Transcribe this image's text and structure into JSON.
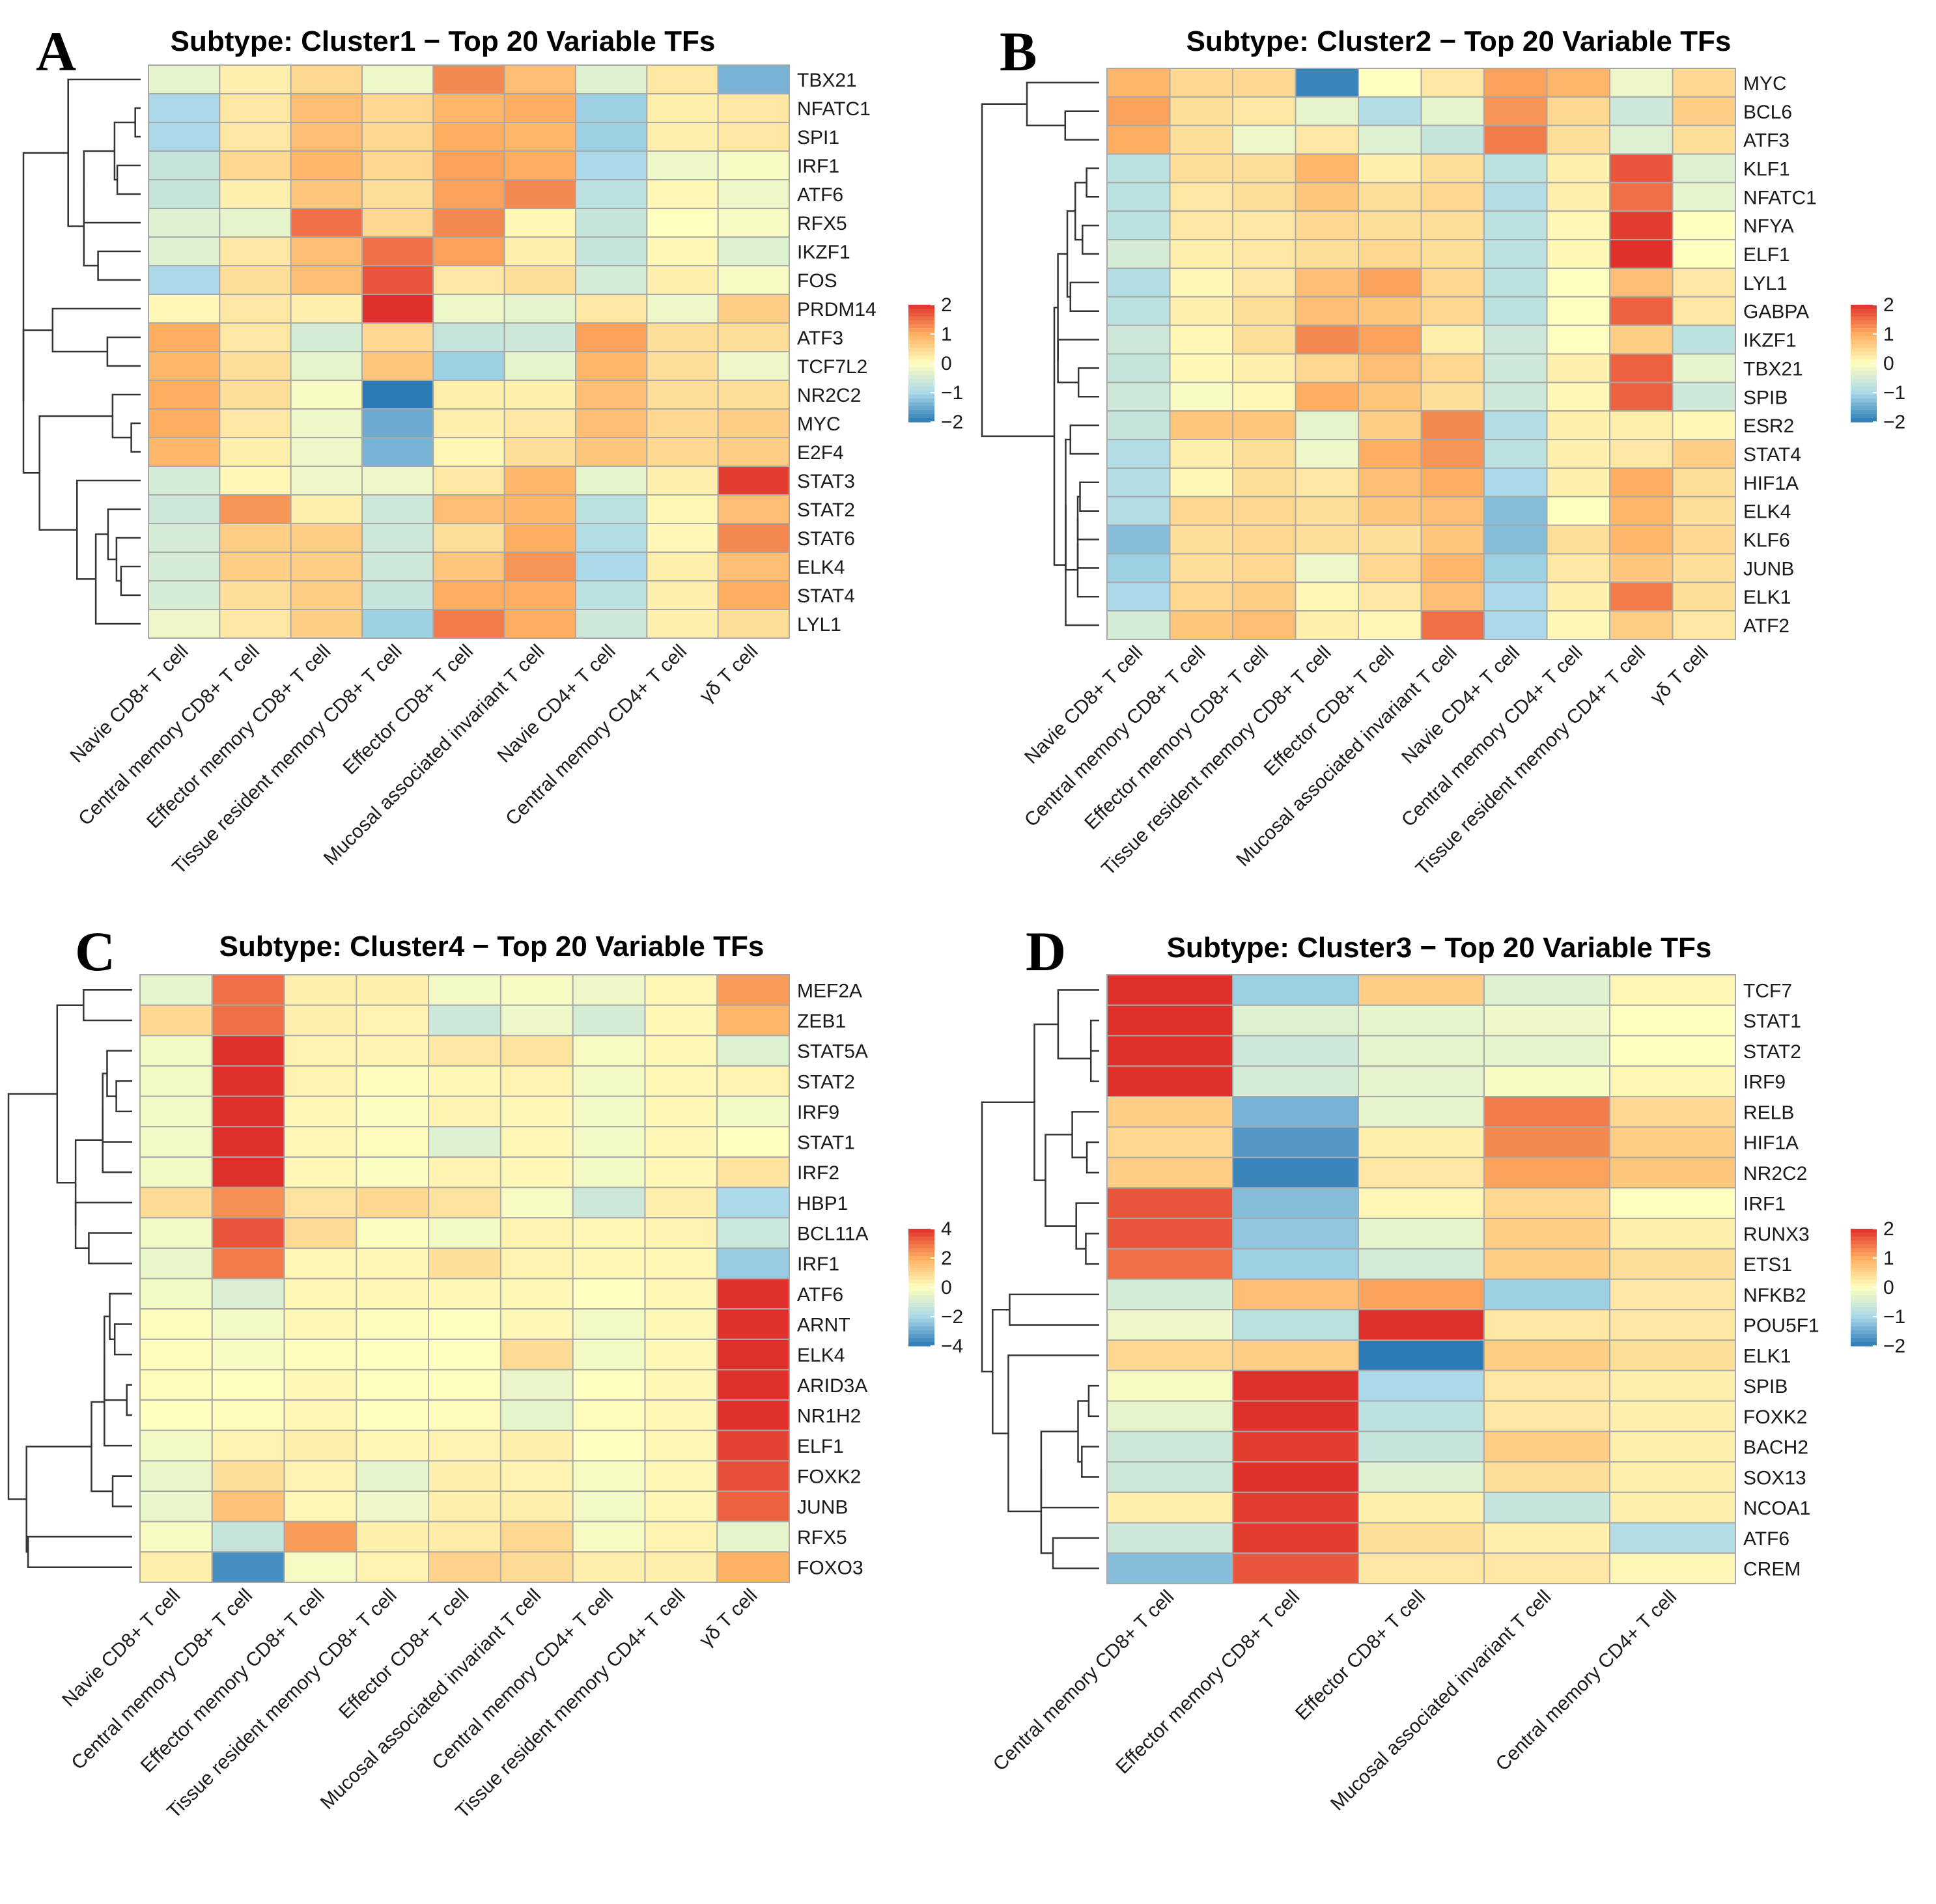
{
  "figure": {
    "description_free": true,
    "colorscale": {
      "low": "#2c7bb6",
      "mid": "#ffffbf",
      "high": "#e0302b",
      "midcolors": [
        "#2c7bb6",
        "#abd9e9",
        "#ffffbf",
        "#fdae61",
        "#e0302b"
      ]
    }
  },
  "chart_data": [
    {
      "panel": "A",
      "type": "heatmap",
      "title": "Subtype: Cluster1 − Top 20 Variable TFs",
      "columns": [
        "Navie CD8+ T cell",
        "Central memory CD8+ T cell",
        "Effector memory CD8+ T cell",
        "Tissue resident memory CD8+ T cell",
        "Effector CD8+ T cell",
        "Mucosal associated invariant T cell",
        "Navie CD4+ T cell",
        "Central memory CD4+ T cell",
        "γδ T cell"
      ],
      "rows": [
        "TBX21",
        "NFATC1",
        "SPI1",
        "IRF1",
        "ATF6",
        "RFX5",
        "IKZF1",
        "FOS",
        "PRDM14",
        "ATF3",
        "TCF7L2",
        "NR2C2",
        "MYC",
        "E2F4",
        "STAT3",
        "STAT2",
        "STAT6",
        "ELK4",
        "STAT4",
        "LYL1"
      ],
      "values": [
        [
          -0.3,
          0.2,
          0.5,
          -0.2,
          1.3,
          0.8,
          -0.4,
          0.3,
          -1.4
        ],
        [
          -1.0,
          0.3,
          0.8,
          0.5,
          0.9,
          1.0,
          -1.1,
          0.2,
          0.3
        ],
        [
          -1.0,
          0.3,
          0.8,
          0.5,
          1.0,
          0.9,
          -1.1,
          0.2,
          0.3
        ],
        [
          -0.7,
          0.5,
          0.9,
          0.5,
          1.1,
          1.0,
          -1.0,
          -0.2,
          -0.1
        ],
        [
          -0.7,
          0.2,
          0.7,
          0.4,
          1.1,
          1.3,
          -0.8,
          0.1,
          -0.2
        ],
        [
          -0.4,
          -0.3,
          1.5,
          0.5,
          1.3,
          0.1,
          -0.7,
          0.0,
          -0.1
        ],
        [
          -0.4,
          0.3,
          0.8,
          1.5,
          1.1,
          0.2,
          -0.7,
          0.1,
          -0.4
        ],
        [
          -1.0,
          0.4,
          0.8,
          1.7,
          0.3,
          0.4,
          -0.5,
          0.2,
          -0.1
        ],
        [
          0.1,
          0.3,
          0.2,
          2.2,
          -0.2,
          -0.3,
          0.3,
          -0.2,
          0.6
        ],
        [
          1.0,
          0.3,
          -0.5,
          0.5,
          -0.7,
          -0.6,
          1.1,
          0.4,
          0.4
        ],
        [
          0.9,
          0.4,
          -0.3,
          0.7,
          -1.1,
          -0.3,
          0.9,
          0.4,
          -0.2
        ],
        [
          1.0,
          0.4,
          -0.1,
          -2.1,
          0.2,
          0.2,
          0.8,
          0.4,
          0.4
        ],
        [
          1.0,
          0.3,
          -0.2,
          -1.5,
          0.2,
          0.3,
          0.8,
          0.5,
          0.6
        ],
        [
          0.9,
          0.2,
          -0.2,
          -1.4,
          0.1,
          0.4,
          0.7,
          0.5,
          0.6
        ],
        [
          -0.5,
          0.1,
          -0.2,
          -0.2,
          0.3,
          0.9,
          -0.3,
          0.2,
          1.9
        ],
        [
          -0.6,
          1.2,
          0.2,
          -0.6,
          0.8,
          0.9,
          -0.8,
          0.1,
          0.8
        ],
        [
          -0.5,
          0.6,
          0.6,
          -0.6,
          0.4,
          1.0,
          -0.9,
          0.1,
          1.3
        ],
        [
          -0.5,
          0.6,
          0.6,
          -0.6,
          0.7,
          1.2,
          -1.0,
          0.2,
          0.8
        ],
        [
          -0.5,
          0.4,
          0.6,
          -0.7,
          1.0,
          1.0,
          -0.8,
          0.2,
          1.0
        ],
        [
          -0.2,
          0.3,
          0.6,
          -1.1,
          1.4,
          1.0,
          -0.6,
          0.2,
          0.4
        ]
      ],
      "legend": {
        "ticks": [
          2,
          1,
          0,
          -1,
          -2
        ],
        "tick_labels": [
          "2",
          "1",
          "0",
          "−1",
          "−2"
        ],
        "range": [
          -2,
          2
        ]
      },
      "dendrogram": {
        "type": "row",
        "leaves": 20
      }
    },
    {
      "panel": "B",
      "type": "heatmap",
      "title": "Subtype: Cluster2 − Top 20 Variable TFs",
      "columns": [
        "Navie CD8+ T cell",
        "Central memory CD8+ T cell",
        "Effector memory CD8+ T cell",
        "Tissue resident memory CD8+ T cell",
        "Effector CD8+ T cell",
        "Mucosal associated invariant T cell",
        "Navie CD4+ T cell",
        "Central memory CD4+ T cell",
        "Tissue resident memory CD4+ T cell",
        "γδ T cell"
      ],
      "rows": [
        "MYC",
        "BCL6",
        "ATF3",
        "KLF1",
        "NFATC1",
        "NFYA",
        "ELF1",
        "LYL1",
        "GABPA",
        "IKZF1",
        "TBX21",
        "SPIB",
        "ESR2",
        "STAT4",
        "HIF1A",
        "ELK4",
        "KLF6",
        "JUNB",
        "ELK1",
        "ATF2"
      ],
      "values": [
        [
          0.9,
          0.5,
          0.5,
          -1.9,
          0.0,
          0.3,
          1.1,
          0.9,
          -0.2,
          0.5
        ],
        [
          1.1,
          0.4,
          0.3,
          -0.3,
          -0.9,
          -0.3,
          1.2,
          0.5,
          -0.6,
          0.6
        ],
        [
          1.0,
          0.4,
          -0.2,
          0.3,
          -0.4,
          -0.7,
          1.4,
          0.4,
          -0.4,
          0.4
        ],
        [
          -0.8,
          0.4,
          0.4,
          0.9,
          0.2,
          0.4,
          -0.8,
          0.2,
          1.7,
          -0.4
        ],
        [
          -0.8,
          0.3,
          0.4,
          0.7,
          0.4,
          0.5,
          -0.9,
          0.2,
          1.5,
          -0.3
        ],
        [
          -0.8,
          0.3,
          0.3,
          0.5,
          0.4,
          0.4,
          -0.8,
          0.1,
          1.9,
          0.0
        ],
        [
          -0.5,
          0.2,
          0.3,
          0.4,
          0.5,
          0.4,
          -0.8,
          0.1,
          2.3,
          0.0
        ],
        [
          -0.9,
          0.1,
          0.3,
          0.8,
          1.1,
          0.5,
          -0.8,
          0.0,
          0.8,
          0.3
        ],
        [
          -0.8,
          0.2,
          0.4,
          0.8,
          0.7,
          0.5,
          -0.8,
          0.0,
          1.6,
          0.3
        ],
        [
          -0.6,
          0.1,
          0.4,
          1.3,
          1.1,
          0.2,
          -0.6,
          0.0,
          0.6,
          -0.8
        ],
        [
          -0.7,
          0.1,
          0.2,
          0.5,
          0.8,
          0.5,
          -0.6,
          0.2,
          1.6,
          -0.3
        ],
        [
          -0.6,
          -0.1,
          0.1,
          1.0,
          0.7,
          0.4,
          -0.6,
          0.1,
          1.6,
          -0.6
        ],
        [
          -0.7,
          0.7,
          0.7,
          -0.3,
          0.6,
          1.3,
          -0.9,
          0.2,
          0.2,
          0.1
        ],
        [
          -0.9,
          0.2,
          0.4,
          -0.2,
          1.0,
          1.2,
          -0.8,
          0.2,
          0.3,
          0.6
        ],
        [
          -0.9,
          0.1,
          0.4,
          0.3,
          0.8,
          1.0,
          -1.0,
          0.2,
          1.0,
          0.4
        ],
        [
          -0.9,
          0.5,
          0.5,
          0.4,
          0.7,
          0.8,
          -1.3,
          0.0,
          0.9,
          0.4
        ],
        [
          -1.3,
          0.4,
          0.5,
          0.4,
          0.4,
          0.7,
          -1.3,
          0.4,
          0.9,
          0.5
        ],
        [
          -1.1,
          0.4,
          0.5,
          -0.2,
          0.5,
          0.9,
          -1.1,
          0.3,
          0.7,
          0.4
        ],
        [
          -1.0,
          0.5,
          0.6,
          0.1,
          0.3,
          0.8,
          -1.0,
          0.2,
          1.4,
          0.4
        ],
        [
          -0.5,
          0.7,
          0.8,
          0.2,
          0.1,
          1.5,
          -1.0,
          0.1,
          0.6,
          0.3
        ]
      ],
      "legend": {
        "ticks": [
          2,
          1,
          0,
          -1,
          -2
        ],
        "tick_labels": [
          "2",
          "1",
          "0",
          "−1",
          "−2"
        ],
        "range": [
          -2,
          2
        ]
      },
      "dendrogram": {
        "type": "row",
        "leaves": 20
      }
    },
    {
      "panel": "C",
      "type": "heatmap",
      "title": "Subtype: Cluster4 − Top 20 Variable TFs",
      "columns": [
        "Navie CD8+ T cell",
        "Central memory CD8+ T cell",
        "Effector memory CD8+ T cell",
        "Tissue resident memory CD8+ T cell",
        "Effector CD8+ T cell",
        "Mucosal associated invariant T cell",
        "Central memory CD4+ T cell",
        "Tissue resident memory CD4+ T cell",
        "γδ T cell"
      ],
      "rows": [
        "MEF2A",
        "ZEB1",
        "STAT5A",
        "STAT2",
        "IRF9",
        "STAT1",
        "IRF2",
        "HBP1",
        "BCL11A",
        "IRF1",
        "ATF6",
        "ARNT",
        "ELK4",
        "ARID3A",
        "NR1H2",
        "ELF1",
        "FOXK2",
        "JUNB",
        "RFX5",
        "FOXO3"
      ],
      "values": [
        [
          -0.6,
          3.0,
          0.4,
          0.4,
          -0.3,
          -0.2,
          -0.4,
          0.2,
          2.3
        ],
        [
          1.0,
          3.0,
          0.4,
          0.3,
          -1.2,
          -0.4,
          -1.0,
          0.2,
          1.8
        ],
        [
          -0.3,
          4.0,
          0.3,
          0.3,
          0.6,
          0.7,
          -0.2,
          0.2,
          -0.8
        ],
        [
          -0.3,
          4.0,
          0.3,
          0.1,
          0.2,
          0.3,
          -0.3,
          0.2,
          0.3
        ],
        [
          -0.3,
          4.0,
          0.2,
          -0.1,
          0.3,
          0.2,
          -0.3,
          0.2,
          -0.3
        ],
        [
          -0.3,
          4.0,
          0.2,
          0.1,
          -0.8,
          0.2,
          -0.3,
          0.2,
          0.0
        ],
        [
          -0.3,
          4.0,
          0.2,
          -0.1,
          0.3,
          0.2,
          -0.3,
          0.2,
          0.7
        ],
        [
          0.9,
          2.5,
          0.7,
          1.0,
          0.7,
          -0.2,
          -1.2,
          0.4,
          -2.0
        ],
        [
          -0.3,
          3.4,
          0.9,
          -0.1,
          -0.3,
          0.3,
          0.2,
          0.3,
          -1.3
        ],
        [
          -0.5,
          2.8,
          0.2,
          0.2,
          0.8,
          0.3,
          0.2,
          0.2,
          -2.3
        ],
        [
          -0.3,
          -0.9,
          0.2,
          0.2,
          0.2,
          0.2,
          0.0,
          0.2,
          4.0
        ],
        [
          0.1,
          -0.3,
          0.2,
          0.1,
          0.0,
          0.2,
          -0.3,
          0.2,
          4.0
        ],
        [
          0.1,
          -0.2,
          0.1,
          0.0,
          0.0,
          0.9,
          -0.3,
          0.2,
          4.0
        ],
        [
          0.1,
          0.0,
          0.2,
          0.0,
          0.0,
          -0.5,
          0.0,
          0.2,
          4.0
        ],
        [
          0.0,
          0.1,
          0.2,
          0.0,
          0.1,
          -0.6,
          0.1,
          0.2,
          4.0
        ],
        [
          -0.3,
          0.3,
          0.4,
          0.2,
          0.3,
          0.4,
          0.0,
          0.2,
          3.7
        ],
        [
          -0.5,
          0.8,
          0.3,
          -0.6,
          0.4,
          0.3,
          -0.2,
          0.2,
          3.5
        ],
        [
          -0.5,
          1.5,
          0.2,
          -0.4,
          0.4,
          0.4,
          -0.3,
          0.2,
          3.2
        ],
        [
          -0.2,
          -1.4,
          2.3,
          0.4,
          0.5,
          1.0,
          -0.2,
          0.3,
          -0.6
        ],
        [
          0.4,
          -3.6,
          -0.2,
          0.3,
          1.1,
          0.9,
          0.4,
          0.4,
          1.9
        ]
      ],
      "legend": {
        "ticks": [
          4,
          2,
          0,
          -2,
          -4
        ],
        "tick_labels": [
          "4",
          "2",
          "0",
          "−2",
          "−4"
        ],
        "range": [
          -4,
          4
        ]
      },
      "dendrogram": {
        "type": "row",
        "leaves": 20
      }
    },
    {
      "panel": "D",
      "type": "heatmap",
      "title": "Subtype: Cluster3 − Top 20 Variable TFs",
      "columns": [
        "Central memory CD8+ T cell",
        "Effector memory CD8+ T cell",
        "Effector CD8+ T cell",
        "Mucosal associated invariant T cell",
        "Central memory CD4+ T cell"
      ],
      "rows": [
        "TCF7",
        "STAT1",
        "STAT2",
        "IRF9",
        "RELB",
        "HIF1A",
        "NR2C2",
        "IRF1",
        "RUNX3",
        "ETS1",
        "NFKB2",
        "POU5F1",
        "ELK1",
        "SPIB",
        "FOXK2",
        "BACH2",
        "SOX13",
        "NCOA1",
        "ATF6",
        "CREM"
      ],
      "values": [
        [
          2.0,
          -1.1,
          0.6,
          -0.4,
          0.1
        ],
        [
          2.1,
          -0.4,
          -0.3,
          -0.2,
          0.0
        ],
        [
          2.1,
          -0.6,
          -0.3,
          -0.3,
          0.0
        ],
        [
          2.1,
          -0.5,
          -0.3,
          -0.1,
          0.1
        ],
        [
          0.6,
          -1.4,
          -0.3,
          1.4,
          0.5
        ],
        [
          0.5,
          -1.7,
          0.2,
          1.3,
          0.6
        ],
        [
          0.6,
          -1.9,
          0.3,
          1.1,
          0.7
        ],
        [
          1.7,
          -1.3,
          0.1,
          0.5,
          0.0
        ],
        [
          1.7,
          -1.2,
          -0.3,
          0.6,
          0.2
        ],
        [
          1.5,
          -1.1,
          -0.5,
          0.6,
          0.4
        ],
        [
          -0.5,
          0.8,
          1.1,
          -1.1,
          0.3
        ],
        [
          -0.2,
          -0.8,
          2.2,
          0.3,
          0.3
        ],
        [
          0.5,
          0.6,
          -2.0,
          0.6,
          0.4
        ],
        [
          -0.1,
          2.0,
          -1.0,
          0.3,
          0.2
        ],
        [
          -0.3,
          2.0,
          -0.8,
          0.3,
          0.2
        ],
        [
          -0.6,
          1.9,
          -0.7,
          0.6,
          0.2
        ],
        [
          -0.6,
          2.2,
          -0.4,
          0.4,
          0.2
        ],
        [
          0.2,
          1.9,
          0.2,
          -0.7,
          0.2
        ],
        [
          -0.6,
          1.9,
          0.4,
          0.2,
          -0.9
        ],
        [
          -1.3,
          1.7,
          0.3,
          0.3,
          0.1
        ]
      ],
      "legend": {
        "ticks": [
          2,
          1,
          0,
          -1,
          -2
        ],
        "tick_labels": [
          "2",
          "1",
          "0",
          "−1",
          "−2"
        ],
        "range": [
          -2,
          2
        ]
      },
      "dendrogram": {
        "type": "row",
        "leaves": 20
      }
    }
  ]
}
